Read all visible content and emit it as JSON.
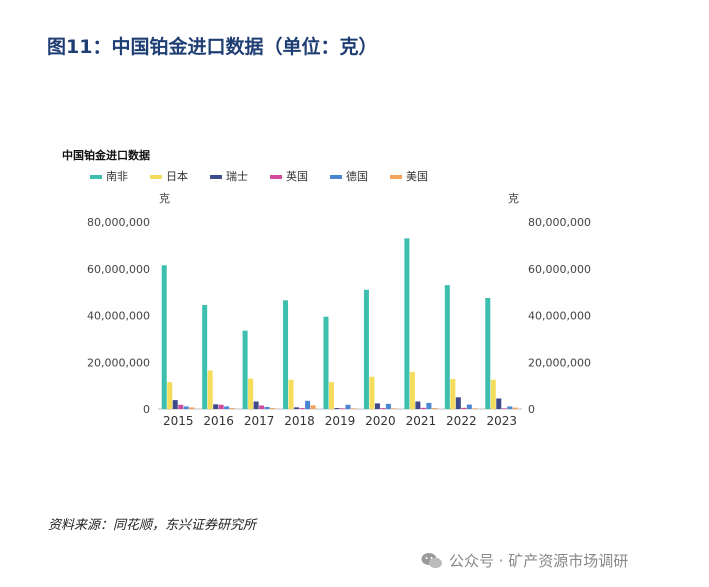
{
  "figure": {
    "title": "图11：中国铂金进口数据（单位：克）",
    "source": "资料来源：同花顺，东兴证券研究所",
    "watermark": "公众号 · 矿产资源市场调研"
  },
  "chart_data": {
    "type": "bar",
    "title": "中国铂金进口数据",
    "ylabel_left": "克",
    "ylabel_right": "克",
    "ylim": [
      0,
      80000000
    ],
    "yticks": [
      0,
      20000000,
      40000000,
      60000000,
      80000000
    ],
    "ytick_labels": [
      "0",
      "20,000,000",
      "40,000,000",
      "60,000,000",
      "80,000,000"
    ],
    "categories": [
      "2015",
      "2016",
      "2017",
      "2018",
      "2019",
      "2020",
      "2021",
      "2022",
      "2023"
    ],
    "legend_position": "top-left",
    "grid": false,
    "series": [
      {
        "name": "南非",
        "color": "#3cbfae",
        "values": [
          61500000,
          44500000,
          33500000,
          46500000,
          39500000,
          51000000,
          73000000,
          53000000,
          47500000
        ]
      },
      {
        "name": "日本",
        "color": "#f5dc5a",
        "values": [
          11500000,
          16500000,
          13000000,
          12500000,
          11500000,
          13800000,
          15800000,
          12800000,
          12500000
        ]
      },
      {
        "name": "瑞士",
        "color": "#3e4a8a",
        "values": [
          3800000,
          2000000,
          3200000,
          700000,
          400000,
          2400000,
          3200000,
          5000000,
          4500000
        ]
      },
      {
        "name": "英国",
        "color": "#d14a9c",
        "values": [
          1800000,
          1800000,
          1500000,
          400000,
          300000,
          400000,
          500000,
          500000,
          300000
        ]
      },
      {
        "name": "德国",
        "color": "#4a86d6",
        "values": [
          1100000,
          1100000,
          900000,
          3500000,
          1800000,
          2200000,
          2600000,
          1900000,
          1100000
        ]
      },
      {
        "name": "美国",
        "color": "#f5a35c",
        "values": [
          700000,
          400000,
          400000,
          1600000,
          300000,
          300000,
          400000,
          300000,
          600000
        ]
      }
    ]
  }
}
